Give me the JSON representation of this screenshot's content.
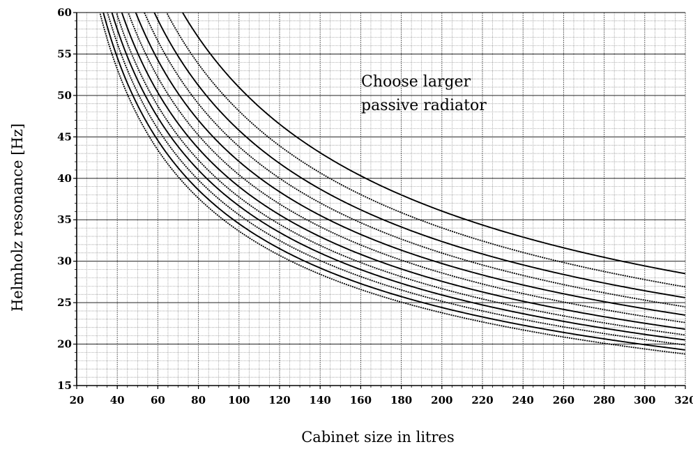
{
  "chart_data": {
    "type": "line",
    "title": "",
    "xlabel": "Cabinet size in litres",
    "ylabel": "Helmholz resonance [Hz]",
    "xlim": [
      20,
      320
    ],
    "ylim": [
      15,
      60
    ],
    "x_ticks": [
      20,
      40,
      60,
      80,
      100,
      120,
      140,
      160,
      180,
      200,
      220,
      240,
      260,
      280,
      300,
      320
    ],
    "y_ticks": [
      15,
      20,
      25,
      30,
      35,
      40,
      45,
      50,
      55,
      60
    ],
    "x_tick_labels": [
      "20",
      "40",
      "60",
      "80",
      "100",
      "120",
      "140",
      "160",
      "180",
      "200",
      "220",
      "240",
      "260",
      "280",
      "300",
      "320"
    ],
    "y_tick_labels": [
      "15",
      "20",
      "25",
      "30",
      "35",
      "40",
      "45",
      "50",
      "55",
      "60"
    ],
    "grid": true,
    "annotation_lines": [
      "Choose larger",
      "passive radiator"
    ],
    "curve_model": "f = f320 * sqrt(320 / V)",
    "series": [
      {
        "style": "solid",
        "f_at_320": 28.5
      },
      {
        "style": "dotted",
        "f_at_320": 26.9
      },
      {
        "style": "solid",
        "f_at_320": 25.6
      },
      {
        "style": "dotted",
        "f_at_320": 24.5
      },
      {
        "style": "solid",
        "f_at_320": 23.5
      },
      {
        "style": "dotted",
        "f_at_320": 22.6
      },
      {
        "style": "solid",
        "f_at_320": 21.8
      },
      {
        "style": "dotted",
        "f_at_320": 21.1
      },
      {
        "style": "solid",
        "f_at_320": 20.5
      },
      {
        "style": "dotted",
        "f_at_320": 19.9
      },
      {
        "style": "solid",
        "f_at_320": 19.3
      },
      {
        "style": "dotted",
        "f_at_320": 18.8
      }
    ]
  }
}
